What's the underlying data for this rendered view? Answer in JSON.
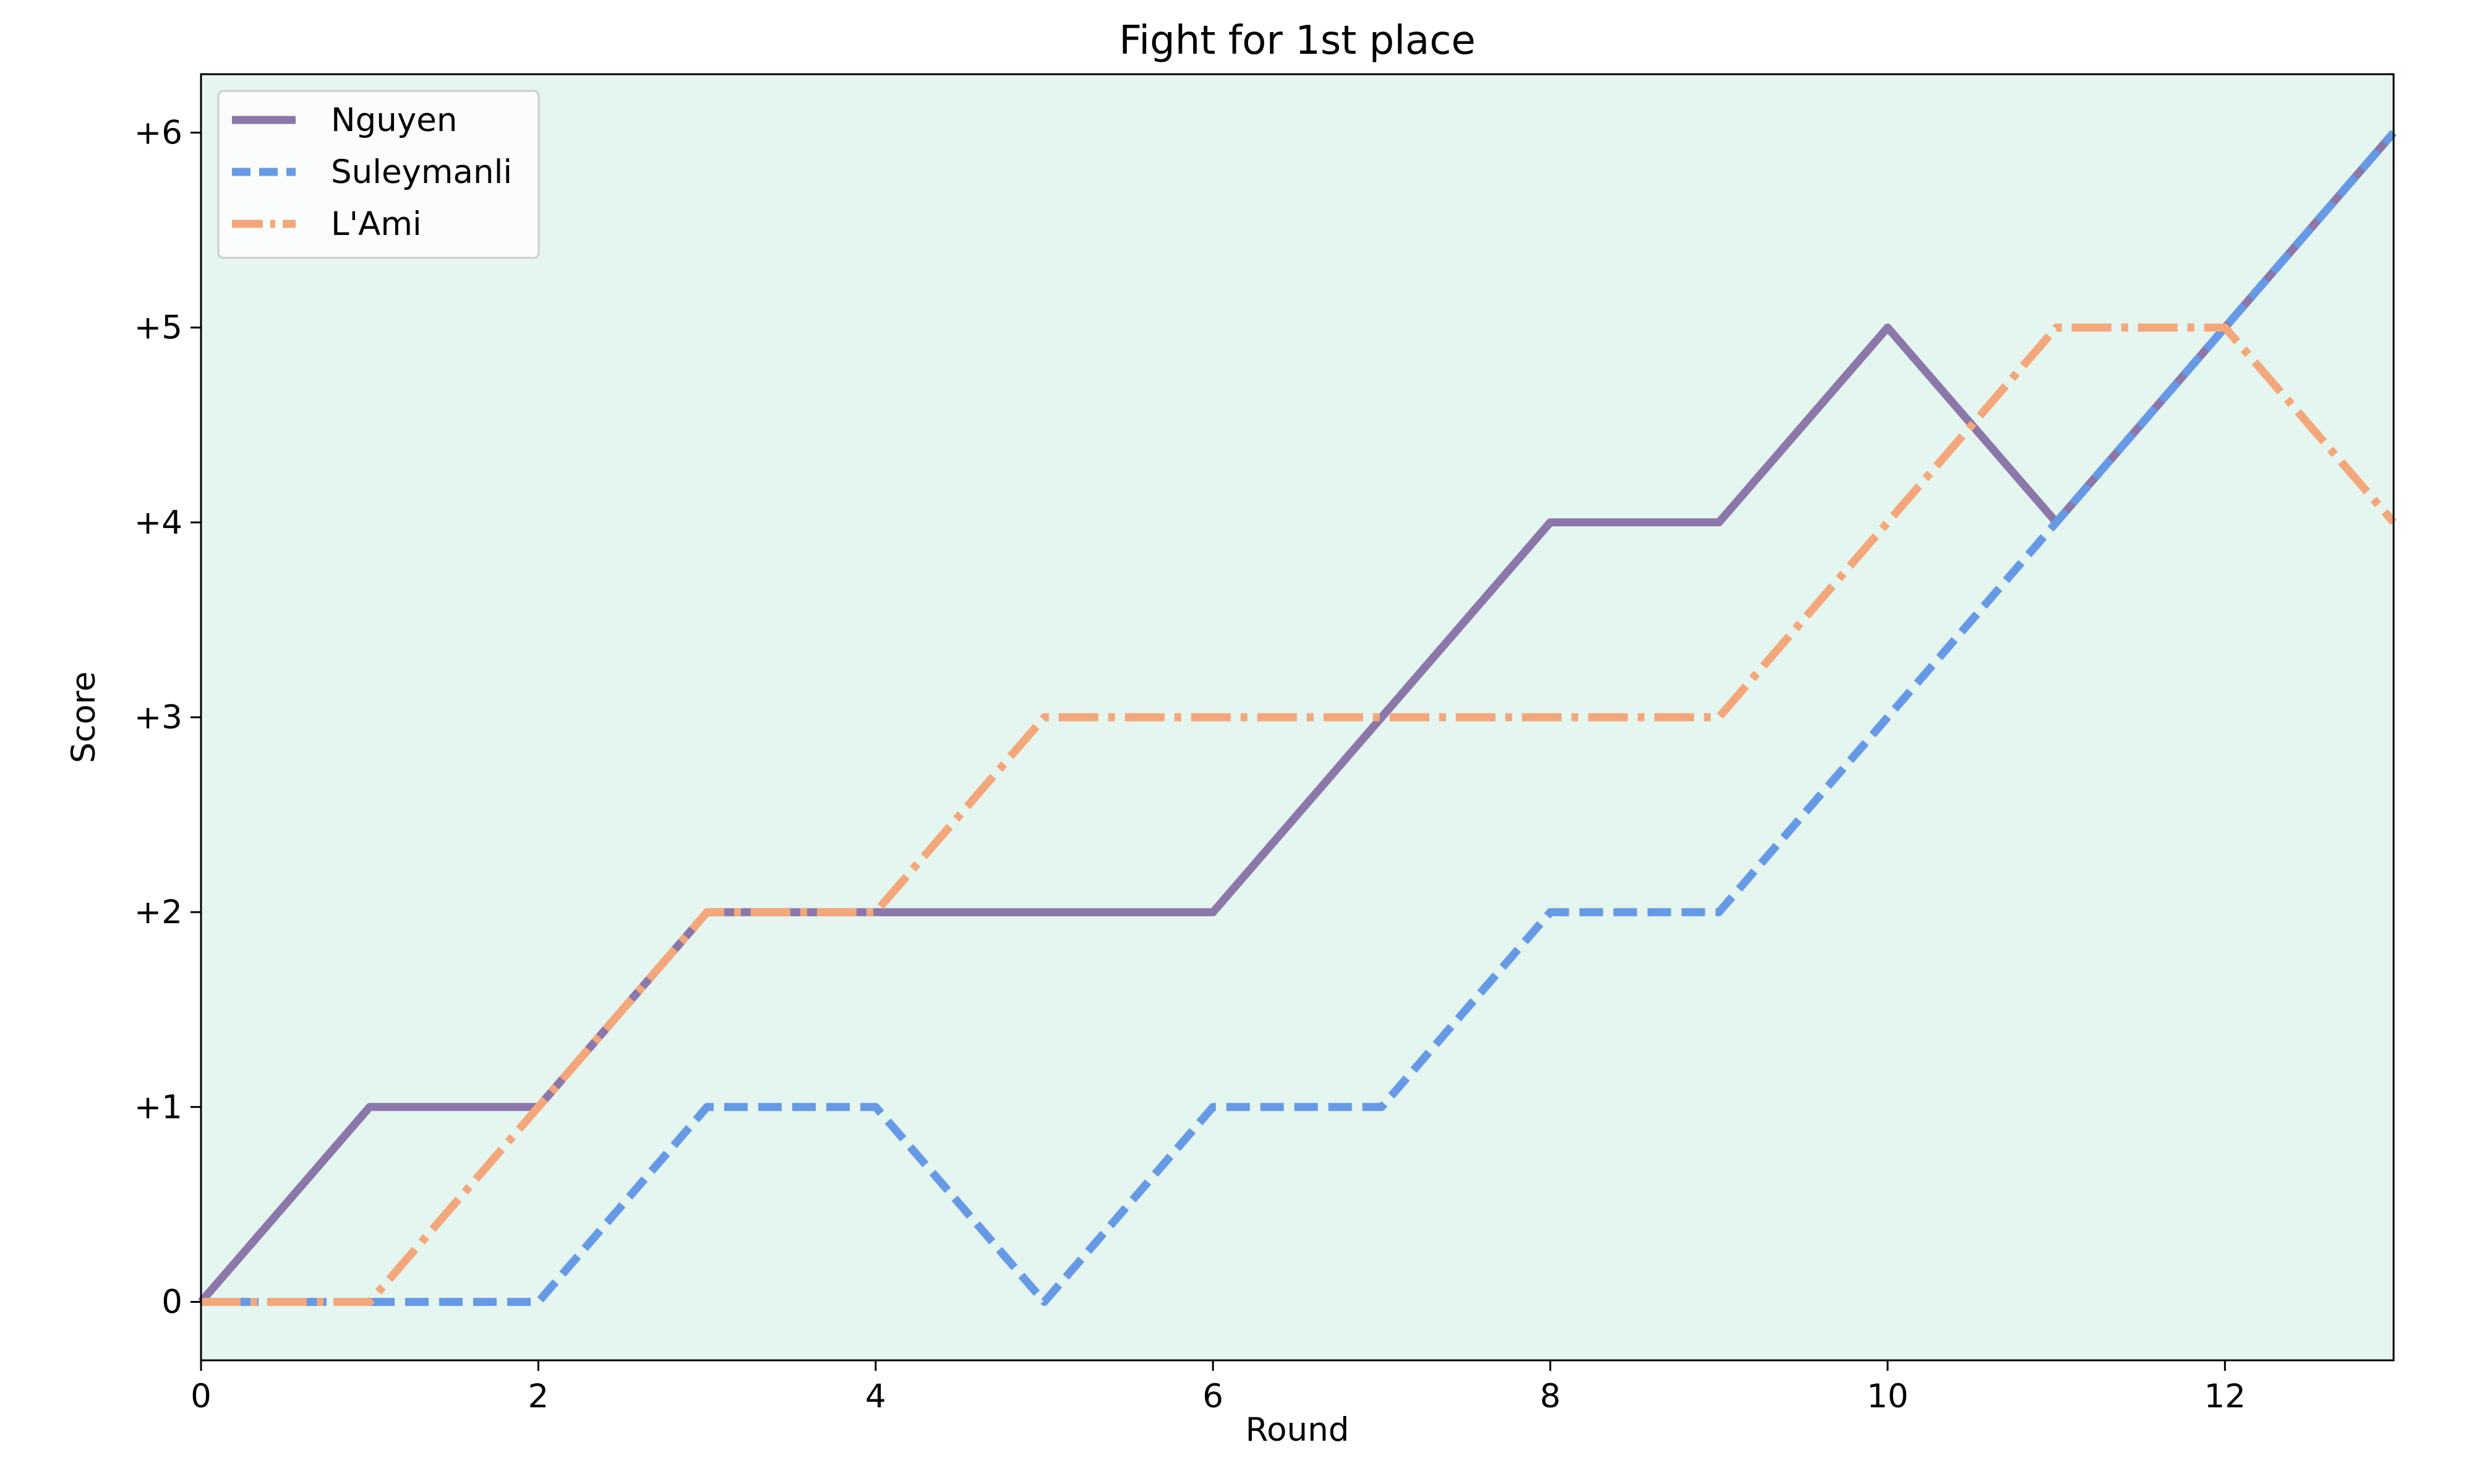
{
  "chart_data": {
    "type": "line",
    "title": "Fight for 1st place",
    "xlabel": "Round",
    "ylabel": "Score",
    "xlim": [
      0,
      13
    ],
    "ylim": [
      -0.3,
      6.3
    ],
    "x_ticks": [
      0,
      2,
      4,
      6,
      8,
      10,
      12
    ],
    "y_ticks": [
      0,
      1,
      2,
      3,
      4,
      5,
      6
    ],
    "y_tick_labels": [
      "0",
      "+1",
      "+2",
      "+3",
      "+4",
      "+5",
      "+6"
    ],
    "grid": false,
    "legend_position": "top-left",
    "plot_background": "#e5f5ef",
    "x": [
      0,
      1,
      2,
      3,
      4,
      5,
      6,
      7,
      8,
      9,
      10,
      11,
      12,
      13
    ],
    "series": [
      {
        "name": "Nguyen",
        "values": [
          0,
          1,
          1,
          2,
          2,
          2,
          2,
          3,
          4,
          4,
          5,
          4,
          5,
          6
        ],
        "color": "#8b77aa",
        "style": "solid"
      },
      {
        "name": "Suleymanli",
        "values": [
          0,
          0,
          0,
          1,
          1,
          0,
          1,
          1,
          2,
          2,
          3,
          4,
          5,
          6
        ],
        "color": "#6699e6",
        "style": "dashed"
      },
      {
        "name": "L'Ami",
        "values": [
          0,
          0,
          1,
          2,
          2,
          3,
          3,
          3,
          3,
          3,
          4,
          5,
          5,
          4
        ],
        "color": "#f4a77a",
        "style": "dashdot"
      }
    ]
  }
}
